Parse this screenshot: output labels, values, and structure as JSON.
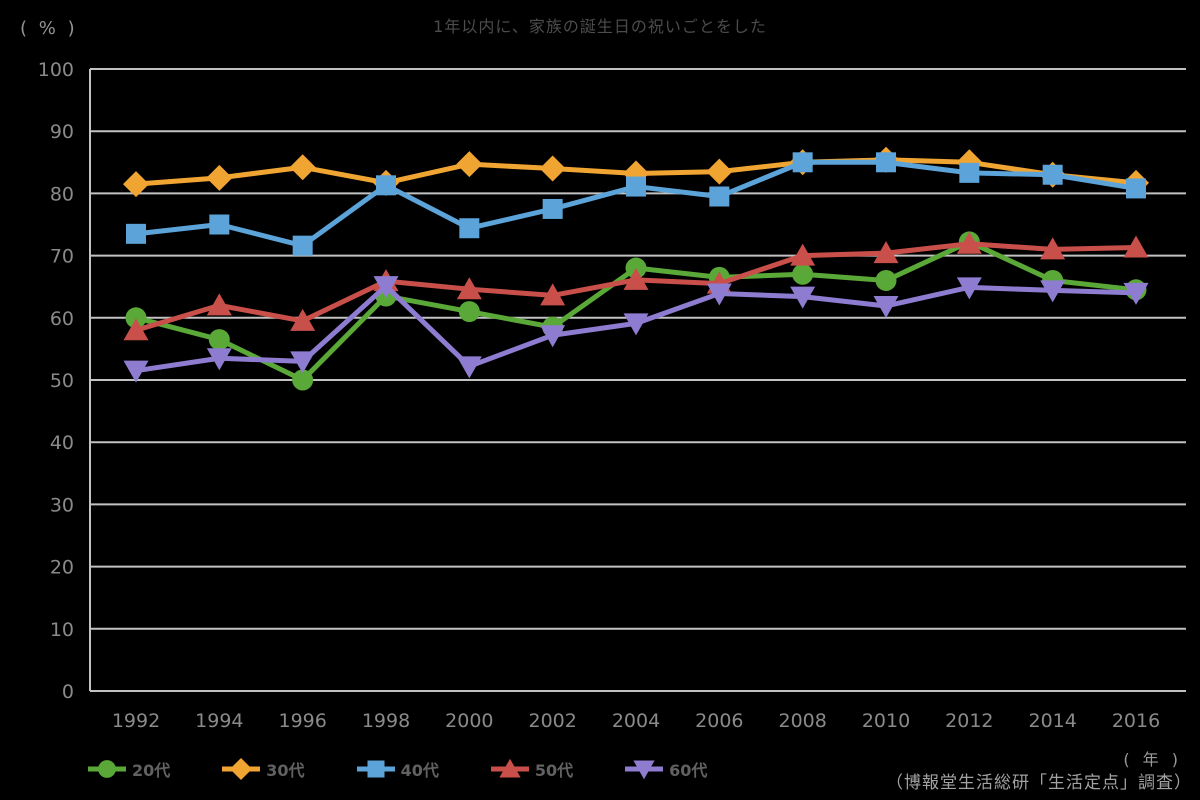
{
  "title": "1年以内に、家族の誕生日の祝いごとをした",
  "y_axis_unit_label": "( % )",
  "x_axis_unit_label": "( 年 )",
  "source": "（博報堂生活総研「生活定点」調査）",
  "palette": {
    "background": "#000000",
    "gridline": "#c2c2c2",
    "title_text": "#4c4c4c",
    "tick_text": "#8a8a8a",
    "legend_text": "#616161",
    "source_text": "#a2a2a2"
  },
  "chart_data": {
    "type": "line",
    "title": "1年以内に、家族の誕生日の祝いごとをした",
    "xlabel": "年",
    "ylabel": "%",
    "ylim": [
      0,
      100
    ],
    "y_ticks": [
      0,
      10,
      20,
      30,
      40,
      50,
      60,
      70,
      80,
      90,
      100
    ],
    "grid": true,
    "legend_position": "bottom",
    "x": [
      1992,
      1994,
      1996,
      1998,
      2000,
      2002,
      2004,
      2006,
      2008,
      2010,
      2012,
      2014,
      2016
    ],
    "series": [
      {
        "name": "20代",
        "marker": "circle",
        "color": "#5aa837",
        "values": [
          60,
          56.5,
          50,
          63.5,
          61,
          58.5,
          68,
          66.5,
          67,
          66,
          72.2,
          66,
          64.5
        ]
      },
      {
        "name": "30代",
        "marker": "diamond",
        "color": "#f0a432",
        "values": [
          81.5,
          82.5,
          84.2,
          81.7,
          84.7,
          84,
          83.2,
          83.5,
          85,
          85.4,
          85,
          83,
          81.7
        ]
      },
      {
        "name": "40代",
        "marker": "square",
        "color": "#5ba3d9",
        "values": [
          73.5,
          75,
          71.6,
          81.3,
          74.4,
          77.5,
          81.1,
          79.5,
          85,
          85,
          83.3,
          83,
          80.8
        ]
      },
      {
        "name": "50代",
        "marker": "triangle-up",
        "color": "#c9504a",
        "values": [
          58,
          62,
          59.5,
          65.9,
          64.6,
          63.6,
          66.1,
          65.5,
          70,
          70.4,
          71.9,
          71,
          71.3
        ]
      },
      {
        "name": "60代",
        "marker": "triangle-down",
        "color": "#8e7cd1",
        "values": [
          51.5,
          53.5,
          53,
          65.1,
          52.2,
          57.2,
          59.1,
          63.9,
          63.4,
          61.9,
          64.9,
          64.4,
          64
        ]
      }
    ]
  }
}
